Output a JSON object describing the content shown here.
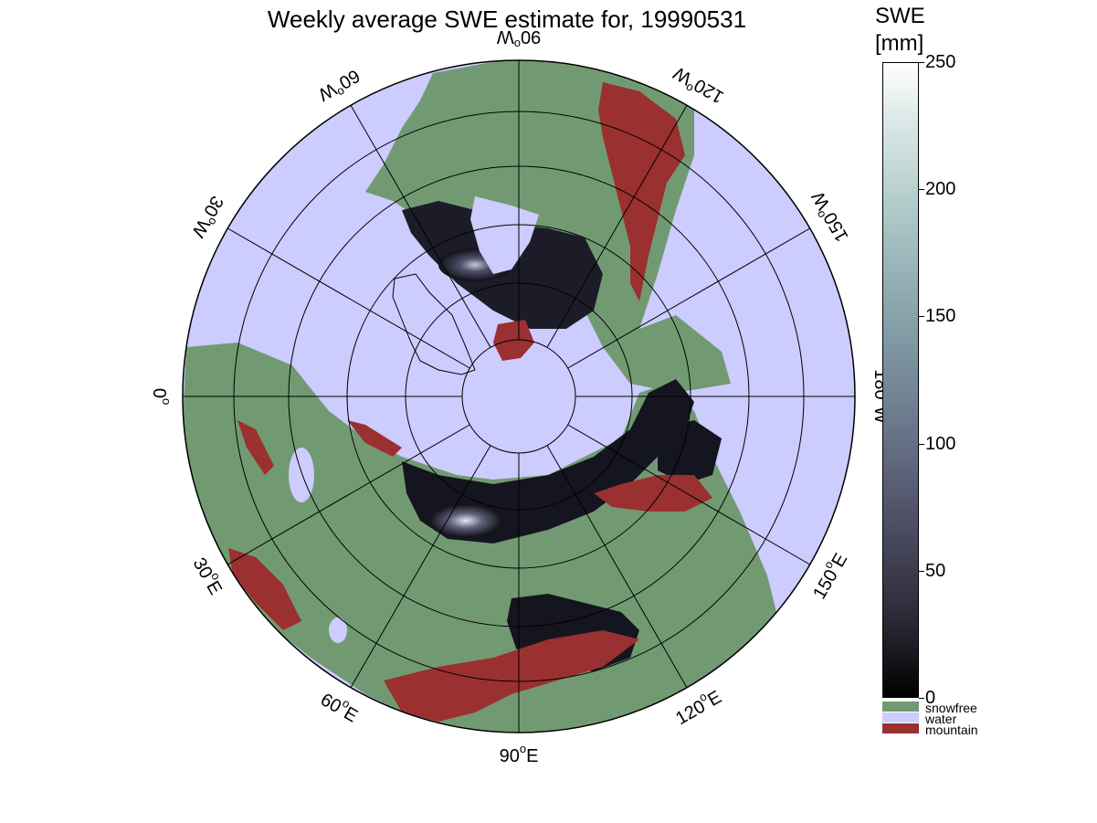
{
  "title": "Weekly average SWE estimate for, 19990531",
  "colorbar": {
    "label_line1": "SWE",
    "label_line2": "[mm]",
    "range": [
      0,
      250
    ],
    "ticks": [
      "0",
      "50",
      "100",
      "150",
      "200",
      "250"
    ],
    "tick_values": [
      0,
      50,
      100,
      150,
      200,
      250
    ],
    "gradient_colors": [
      "#000000",
      "#2a2a36",
      "#4f4f66",
      "#6c7b8e",
      "#8ba7ae",
      "#b2cccb",
      "#dfebea",
      "#ffffff"
    ]
  },
  "legend": [
    {
      "name": "snowfree",
      "color": "#729a72"
    },
    {
      "name": "water",
      "color": "#ccccff"
    },
    {
      "name": "mountain",
      "color": "#9a3030"
    }
  ],
  "meridian_labels": [
    {
      "lon": "90",
      "hemi": "W",
      "lon_deg": -90
    },
    {
      "lon": "120",
      "hemi": "W",
      "lon_deg": -120
    },
    {
      "lon": "150",
      "hemi": "W",
      "lon_deg": -150
    },
    {
      "lon": "180",
      "hemi": "W",
      "lon_deg": 180
    },
    {
      "lon": "150",
      "hemi": "E",
      "lon_deg": 150
    },
    {
      "lon": "120",
      "hemi": "E",
      "lon_deg": 120
    },
    {
      "lon": "90",
      "hemi": "E",
      "lon_deg": 90
    },
    {
      "lon": "60",
      "hemi": "E",
      "lon_deg": 60
    },
    {
      "lon": "30",
      "hemi": "E",
      "lon_deg": 30
    },
    {
      "lon": "0",
      "hemi": "",
      "lon_deg": 0
    },
    {
      "lon": "30",
      "hemi": "W",
      "lon_deg": -30
    },
    {
      "lon": "60",
      "hemi": "W",
      "lon_deg": -60
    }
  ],
  "map": {
    "projection": "north polar stereographic",
    "colors": {
      "water": "#ccccff",
      "land": "#729a72",
      "mountain": "#9a3030",
      "snow_dark": "#101018",
      "snow_mid": "#50506a",
      "grid": "#000000"
    }
  }
}
